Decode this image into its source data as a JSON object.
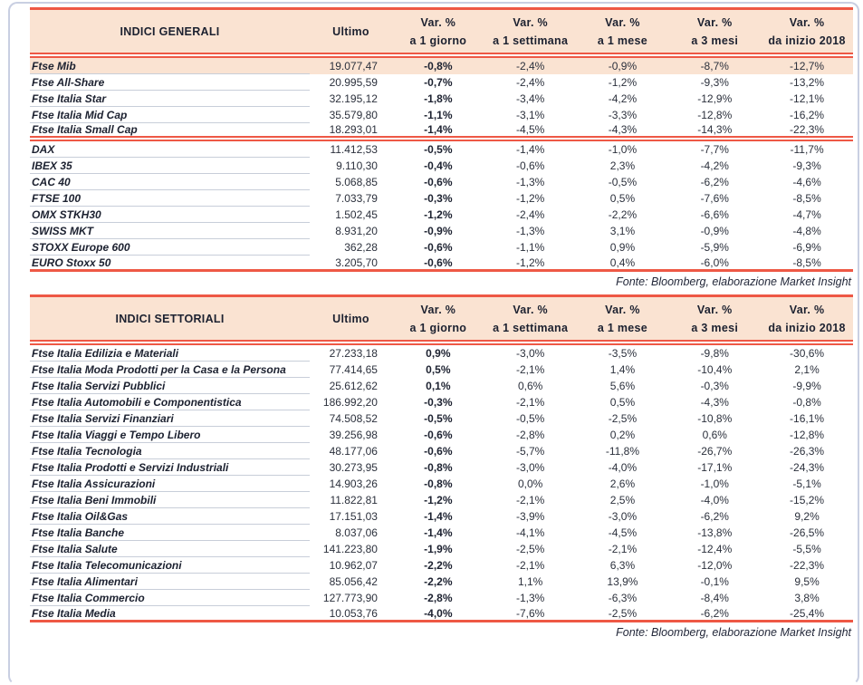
{
  "colors": {
    "accent_red": "#EE5845",
    "header_peach": "#FAE3D2",
    "text_dark": "#1C2130",
    "row_separator": "#C8CED9",
    "frame_border": "#C9CFE2"
  },
  "tables": [
    {
      "title": "INDICI GENERALI",
      "col_ultimo": "Ultimo",
      "var_label": "Var. %",
      "var_sublabels": [
        "a 1 giorno",
        "a 1 settimana",
        "a 1 mese",
        "a 3 mesi",
        "da inizio 2018"
      ],
      "highlight_first_row": true,
      "source": "Fonte: Bloomberg, elaborazione Market Insight",
      "groups": [
        [
          [
            "Ftse Mib",
            "19.077,47",
            "-0,8%",
            "-2,4%",
            "-0,9%",
            "-8,7%",
            "-12,7%"
          ],
          [
            "Ftse All-Share",
            "20.995,59",
            "-0,7%",
            "-2,4%",
            "-1,2%",
            "-9,3%",
            "-13,2%"
          ],
          [
            "Ftse Italia Star",
            "32.195,12",
            "-1,8%",
            "-3,4%",
            "-4,2%",
            "-12,9%",
            "-12,1%"
          ],
          [
            "Ftse Italia Mid Cap",
            "35.579,80",
            "-1,1%",
            "-3,1%",
            "-3,3%",
            "-12,8%",
            "-16,2%"
          ],
          [
            "Ftse Italia Small Cap",
            "18.293,01",
            "-1,4%",
            "-4,5%",
            "-4,3%",
            "-14,3%",
            "-22,3%"
          ]
        ],
        [
          [
            "DAX",
            "11.412,53",
            "-0,5%",
            "-1,4%",
            "-1,0%",
            "-7,7%",
            "-11,7%"
          ],
          [
            "IBEX 35",
            "9.110,30",
            "-0,4%",
            "-0,6%",
            "2,3%",
            "-4,2%",
            "-9,3%"
          ],
          [
            "CAC 40",
            "5.068,85",
            "-0,6%",
            "-1,3%",
            "-0,5%",
            "-6,2%",
            "-4,6%"
          ],
          [
            "FTSE 100",
            "7.033,79",
            "-0,3%",
            "-1,2%",
            "0,5%",
            "-7,6%",
            "-8,5%"
          ],
          [
            "OMX STKH30",
            "1.502,45",
            "-1,2%",
            "-2,4%",
            "-2,2%",
            "-6,6%",
            "-4,7%"
          ],
          [
            "SWISS MKT",
            "8.931,20",
            "-0,9%",
            "-1,3%",
            "3,1%",
            "-0,9%",
            "-4,8%"
          ],
          [
            "STOXX Europe 600",
            "362,28",
            "-0,6%",
            "-1,1%",
            "0,9%",
            "-5,9%",
            "-6,9%"
          ],
          [
            "EURO Stoxx 50",
            "3.205,70",
            "-0,6%",
            "-1,2%",
            "0,4%",
            "-6,0%",
            "-8,5%"
          ]
        ]
      ]
    },
    {
      "title": "INDICI SETTORIALI",
      "col_ultimo": "Ultimo",
      "var_label": "Var. %",
      "var_sublabels": [
        "a 1 giorno",
        "a 1 settimana",
        "a 1 mese",
        "a 3 mesi",
        "da inizio 2018"
      ],
      "highlight_first_row": false,
      "source": "Fonte: Bloomberg, elaborazione Market Insight",
      "groups": [
        [
          [
            "Ftse Italia Edilizia e Materiali",
            "27.233,18",
            "0,9%",
            "-3,0%",
            "-3,5%",
            "-9,8%",
            "-30,6%"
          ],
          [
            "Ftse Italia Moda Prodotti per la Casa e la Persona",
            "77.414,65",
            "0,5%",
            "-2,1%",
            "1,4%",
            "-10,4%",
            "2,1%"
          ],
          [
            "Ftse Italia Servizi Pubblici",
            "25.612,62",
            "0,1%",
            "0,6%",
            "5,6%",
            "-0,3%",
            "-9,9%"
          ],
          [
            "Ftse Italia Automobili e Componentistica",
            "186.992,20",
            "-0,3%",
            "-2,1%",
            "0,5%",
            "-4,3%",
            "-0,8%"
          ],
          [
            "Ftse Italia Servizi Finanziari",
            "74.508,52",
            "-0,5%",
            "-0,5%",
            "-2,5%",
            "-10,8%",
            "-16,1%"
          ],
          [
            "Ftse Italia Viaggi e Tempo Libero",
            "39.256,98",
            "-0,6%",
            "-2,8%",
            "0,2%",
            "0,6%",
            "-12,8%"
          ],
          [
            "Ftse Italia Tecnologia",
            "48.177,06",
            "-0,6%",
            "-5,7%",
            "-11,8%",
            "-26,7%",
            "-26,3%"
          ],
          [
            "Ftse Italia Prodotti e Servizi Industriali",
            "30.273,95",
            "-0,8%",
            "-3,0%",
            "-4,0%",
            "-17,1%",
            "-24,3%"
          ],
          [
            "Ftse Italia Assicurazioni",
            "14.903,26",
            "-0,8%",
            "0,0%",
            "2,6%",
            "-1,0%",
            "-5,1%"
          ],
          [
            "Ftse Italia Beni Immobili",
            "11.822,81",
            "-1,2%",
            "-2,1%",
            "2,5%",
            "-4,0%",
            "-15,2%"
          ],
          [
            "Ftse Italia Oil&Gas",
            "17.151,03",
            "-1,4%",
            "-3,9%",
            "-3,0%",
            "-6,2%",
            "9,2%"
          ],
          [
            "Ftse Italia Banche",
            "8.037,06",
            "-1,4%",
            "-4,1%",
            "-4,5%",
            "-13,8%",
            "-26,5%"
          ],
          [
            "Ftse Italia Salute",
            "141.223,80",
            "-1,9%",
            "-2,5%",
            "-2,1%",
            "-12,4%",
            "-5,5%"
          ],
          [
            "Ftse Italia Telecomunicazioni",
            "10.962,07",
            "-2,2%",
            "-2,1%",
            "6,3%",
            "-12,0%",
            "-22,3%"
          ],
          [
            "Ftse Italia Alimentari",
            "85.056,42",
            "-2,2%",
            "1,1%",
            "13,9%",
            "-0,1%",
            "9,5%"
          ],
          [
            "Ftse Italia Commercio",
            "127.773,90",
            "-2,8%",
            "-1,3%",
            "-6,3%",
            "-8,4%",
            "3,8%"
          ],
          [
            "Ftse Italia Media",
            "10.053,76",
            "-4,0%",
            "-7,6%",
            "-2,5%",
            "-6,2%",
            "-25,4%"
          ]
        ]
      ]
    }
  ]
}
